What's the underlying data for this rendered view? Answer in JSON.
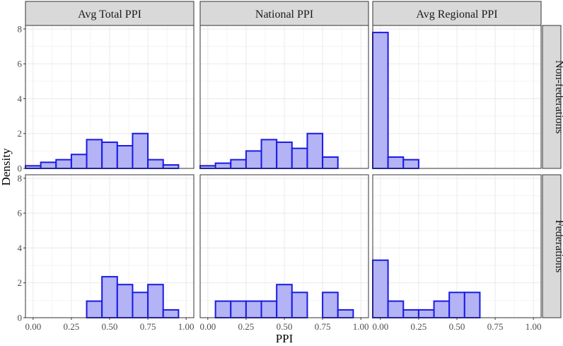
{
  "chart_data": {
    "type": "bar",
    "xlabel": "PPI",
    "ylabel": "Density",
    "xlim": [
      -0.05,
      1.05
    ],
    "ylim": [
      0,
      8.2
    ],
    "x_ticks": [
      "0.00",
      "0.25",
      "0.50",
      "0.75",
      "1.00"
    ],
    "x_tick_values": [
      0,
      0.25,
      0.5,
      0.75,
      1.0
    ],
    "y_ticks": [
      "0",
      "2",
      "4",
      "6",
      "8"
    ],
    "y_tick_values": [
      0,
      2,
      4,
      6,
      8
    ],
    "bin_width": 0.1,
    "bin_centers": [
      0.0,
      0.1,
      0.2,
      0.3,
      0.4,
      0.5,
      0.6,
      0.7,
      0.8,
      0.9,
      1.0
    ],
    "columns": [
      "Avg Total PPI",
      "National PPI",
      "Avg Regional PPI"
    ],
    "rows": [
      "Non-federations",
      "Federations"
    ],
    "grid": true,
    "colors": {
      "bar_fill": "#b3b3f5",
      "bar_stroke": "#1a1ae6",
      "strip_bg": "#d9d9d9",
      "grid": "#ebebeb",
      "panel_border": "#333333"
    },
    "panels": [
      {
        "row": "Non-federations",
        "column": "Avg Total PPI",
        "values": [
          0.15,
          0.35,
          0.5,
          0.8,
          1.65,
          1.5,
          1.3,
          2.0,
          0.5,
          0.2,
          0
        ]
      },
      {
        "row": "Non-federations",
        "column": "National PPI",
        "values": [
          0.15,
          0.3,
          0.5,
          1.0,
          1.65,
          1.5,
          1.15,
          2.0,
          0.65,
          0,
          0
        ]
      },
      {
        "row": "Non-federations",
        "column": "Avg Regional PPI",
        "values": [
          7.8,
          0.65,
          0.5,
          0,
          0,
          0,
          0,
          0,
          0,
          0,
          0
        ]
      },
      {
        "row": "Federations",
        "column": "Avg Total PPI",
        "values": [
          0,
          0,
          0,
          0,
          0.95,
          2.35,
          1.9,
          1.45,
          1.9,
          0.45,
          0
        ]
      },
      {
        "row": "Federations",
        "column": "National PPI",
        "values": [
          0,
          0.95,
          0.95,
          0.95,
          0.95,
          1.9,
          1.45,
          0,
          1.45,
          0.45,
          0
        ]
      },
      {
        "row": "Federations",
        "column": "Avg Regional PPI",
        "values": [
          3.3,
          0.95,
          0.45,
          0.45,
          0.95,
          1.45,
          1.45,
          0,
          0,
          0,
          0
        ]
      }
    ]
  }
}
